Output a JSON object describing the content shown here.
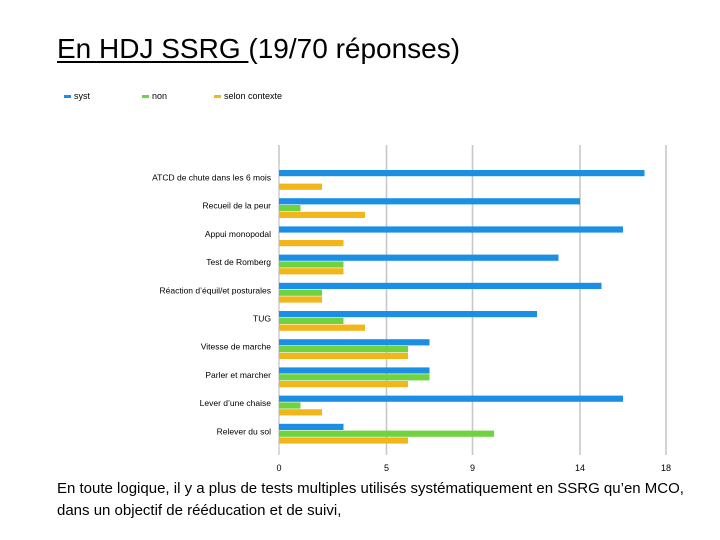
{
  "title_prefix": "En HDJ SSRG ",
  "title_suffix": "(19/70 réponses)",
  "caption": "En toute logique, il y a plus de tests multiples utilisés systématiquement en SSRG qu’en MCO,  dans un objectif de rééducation et de suivi,",
  "chart_data": {
    "type": "bar",
    "orientation": "horizontal",
    "title": "",
    "xlabel": "",
    "ylabel": "",
    "xlim": [
      0,
      18
    ],
    "xticks": [
      0,
      5,
      9,
      14,
      18
    ],
    "grid": true,
    "legend_position": "top-left",
    "categories": [
      "ATCD de chute dans les 6 mois",
      "Recueil de la peur",
      "Appui monopodal",
      "Test de Romberg",
      "Réaction d’équil/et posturales",
      "TUG",
      "Vitesse de marche",
      "Parler et marcher",
      "Lever d’une chaise",
      "Relever du sol"
    ],
    "series": [
      {
        "name": "syst",
        "color": "#1a8fe3",
        "values": [
          17,
          14,
          16,
          13,
          15,
          12,
          7,
          7,
          16,
          3
        ]
      },
      {
        "name": "non",
        "color": "#6fd33f",
        "values": [
          0,
          1,
          0,
          3,
          2,
          3,
          6,
          7,
          1,
          10
        ]
      },
      {
        "name": "selon contexte",
        "color": "#f2b51a",
        "values": [
          2,
          4,
          3,
          3,
          2,
          4,
          6,
          6,
          2,
          6
        ]
      }
    ]
  }
}
